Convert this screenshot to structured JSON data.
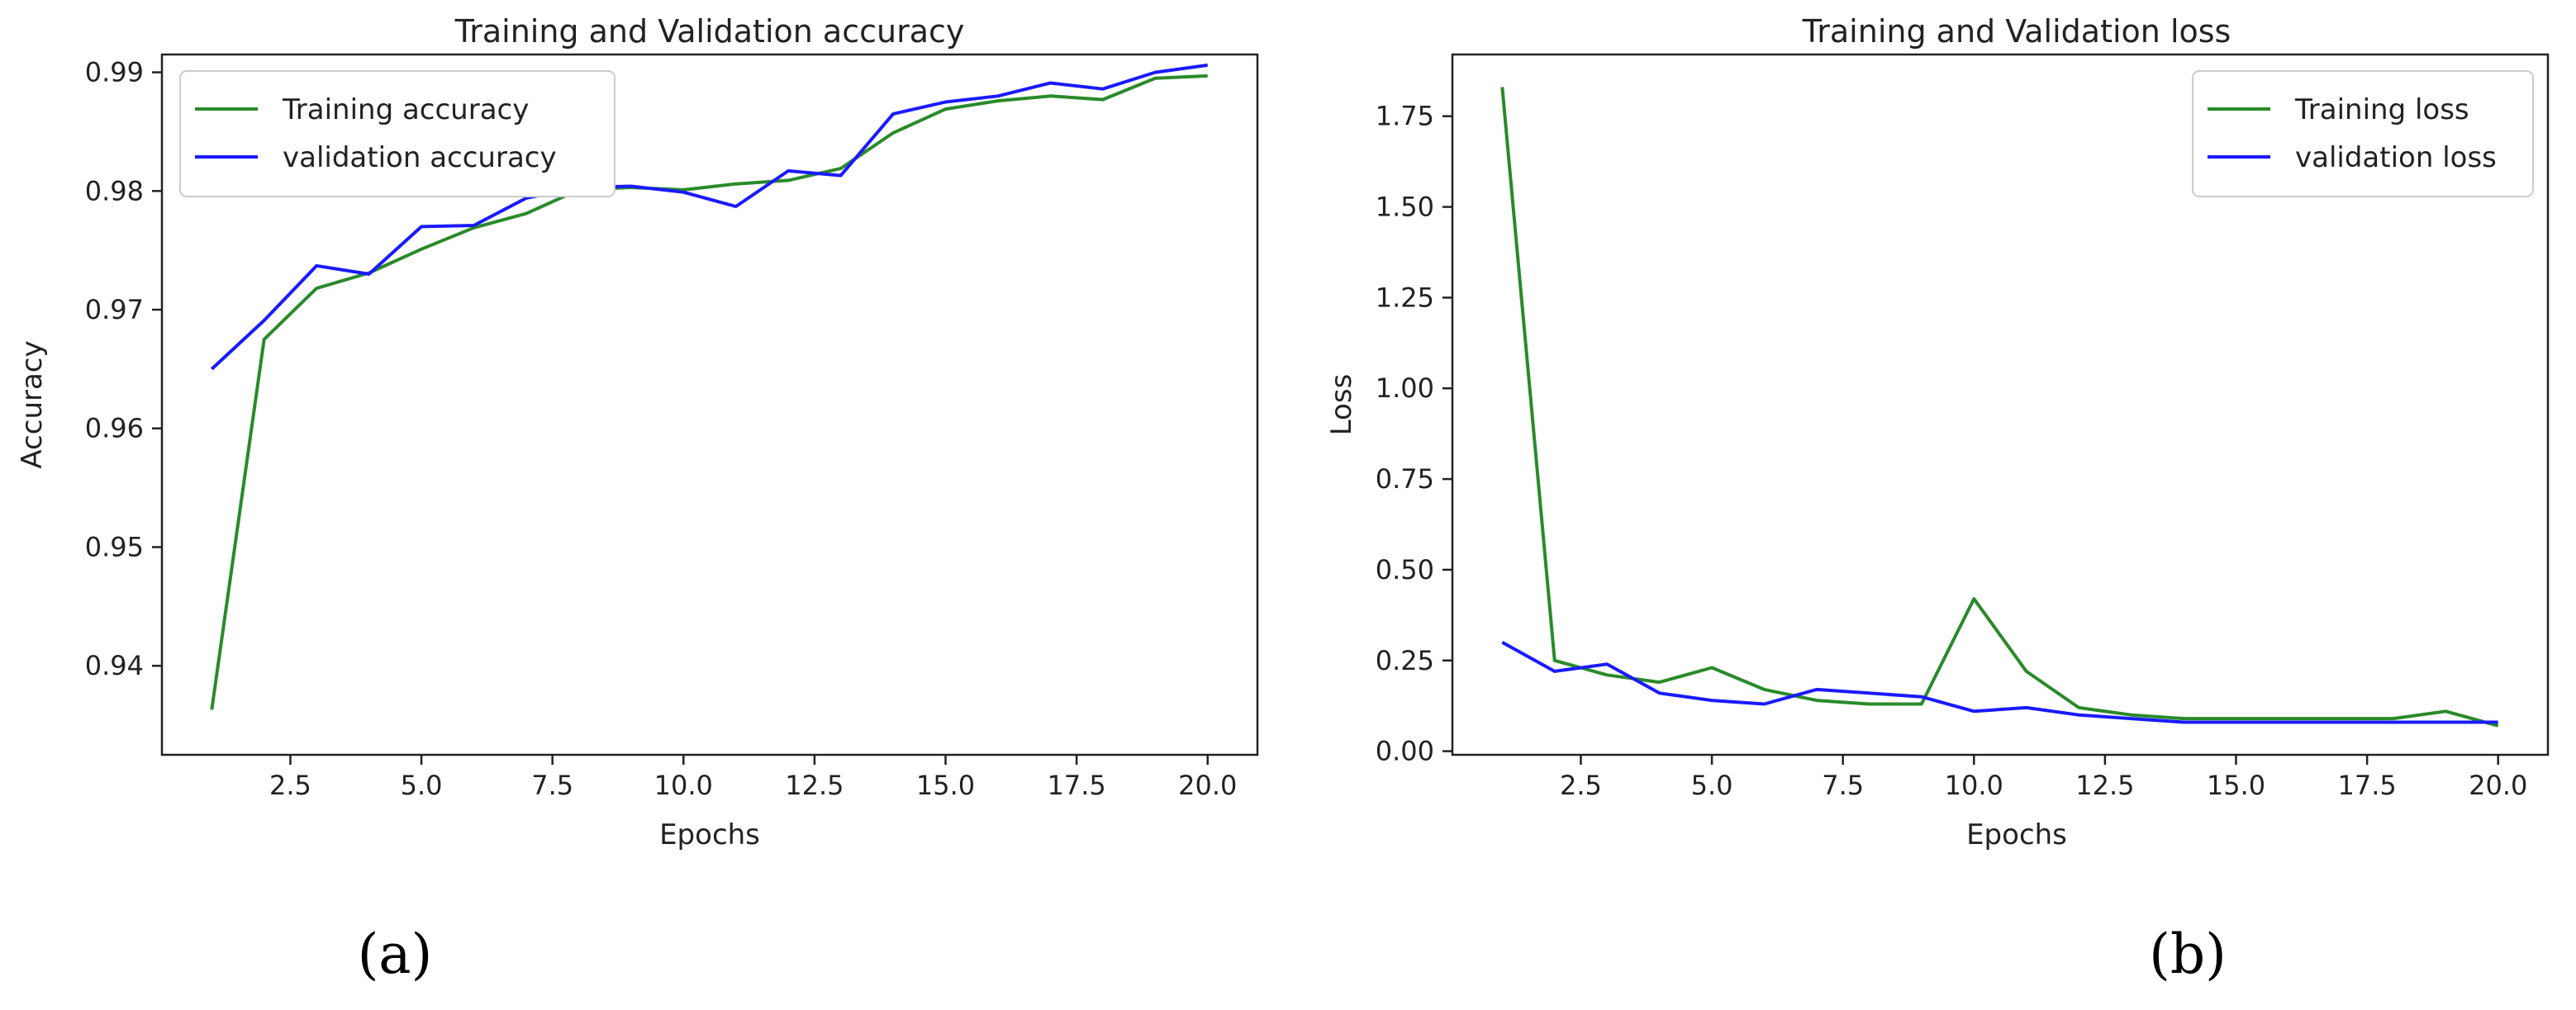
{
  "chart_data": [
    {
      "type": "line",
      "panel_label": "(a)",
      "title": "Training and Validation accuracy",
      "xlabel": "Epochs",
      "ylabel": "Accuracy",
      "xlim": [
        0.05,
        20.95
      ],
      "ylim": [
        0.9325,
        0.9915
      ],
      "xticks": [
        2.5,
        5.0,
        7.5,
        10.0,
        12.5,
        15.0,
        17.5,
        20.0
      ],
      "xtick_labels": [
        "2.5",
        "5.0",
        "7.5",
        "10.0",
        "12.5",
        "15.0",
        "17.5",
        "20.0"
      ],
      "yticks": [
        0.94,
        0.95,
        0.96,
        0.97,
        0.98,
        0.99
      ],
      "ytick_labels": [
        "0.94",
        "0.95",
        "0.96",
        "0.97",
        "0.98",
        "0.99"
      ],
      "grid": false,
      "legend": "upper left",
      "x": [
        1,
        2,
        3,
        4,
        5,
        6,
        7,
        8,
        9,
        10,
        11,
        12,
        13,
        14,
        15,
        16,
        17,
        18,
        19,
        20
      ],
      "series": [
        {
          "name": "Training accuracy",
          "color": "#2a8a2a",
          "values": [
            0.9363,
            0.9675,
            0.9718,
            0.9731,
            0.9751,
            0.9769,
            0.9781,
            0.9801,
            0.9803,
            0.9801,
            0.9806,
            0.9809,
            0.9819,
            0.9849,
            0.9869,
            0.9876,
            0.988,
            0.9877,
            0.9895,
            0.9897
          ]
        },
        {
          "name": "validation accuracy",
          "color": "#1a1aff",
          "values": [
            0.965,
            0.9691,
            0.9737,
            0.973,
            0.977,
            0.9771,
            0.9794,
            0.9803,
            0.9804,
            0.9799,
            0.9787,
            0.9817,
            0.9813,
            0.9865,
            0.9875,
            0.988,
            0.9891,
            0.9886,
            0.99,
            0.9906
          ]
        }
      ]
    },
    {
      "type": "line",
      "panel_label": "(b)",
      "title": "Training and Validation loss",
      "xlabel": "Epochs",
      "ylabel": "Loss",
      "xlim": [
        0.05,
        20.95
      ],
      "ylim": [
        -0.01,
        1.92
      ],
      "xticks": [
        2.5,
        5.0,
        7.5,
        10.0,
        12.5,
        15.0,
        17.5,
        20.0
      ],
      "xtick_labels": [
        "2.5",
        "5.0",
        "7.5",
        "10.0",
        "12.5",
        "15.0",
        "17.5",
        "20.0"
      ],
      "yticks": [
        0.0,
        0.25,
        0.5,
        0.75,
        1.0,
        1.25,
        1.5,
        1.75
      ],
      "ytick_labels": [
        "0.00",
        "0.25",
        "0.50",
        "0.75",
        "1.00",
        "1.25",
        "1.50",
        "1.75"
      ],
      "grid": false,
      "legend": "upper right",
      "x": [
        1,
        2,
        3,
        4,
        5,
        6,
        7,
        8,
        9,
        10,
        11,
        12,
        13,
        14,
        15,
        16,
        17,
        18,
        19,
        20
      ],
      "series": [
        {
          "name": "Training loss",
          "color": "#2a8a2a",
          "values": [
            1.83,
            0.25,
            0.21,
            0.19,
            0.23,
            0.17,
            0.14,
            0.13,
            0.13,
            0.42,
            0.22,
            0.12,
            0.1,
            0.09,
            0.09,
            0.09,
            0.09,
            0.09,
            0.11,
            0.07
          ]
        },
        {
          "name": "validation loss",
          "color": "#1a1aff",
          "values": [
            0.3,
            0.22,
            0.24,
            0.16,
            0.14,
            0.13,
            0.17,
            0.16,
            0.15,
            0.11,
            0.12,
            0.1,
            0.09,
            0.08,
            0.08,
            0.08,
            0.08,
            0.08,
            0.08,
            0.08
          ]
        }
      ]
    }
  ]
}
